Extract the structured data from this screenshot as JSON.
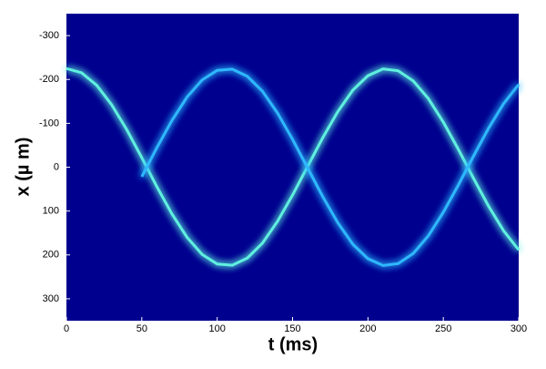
{
  "chart_data": {
    "type": "line",
    "xlabel": "t (ms)",
    "ylabel": "x (µ m)",
    "x": [
      0,
      10,
      20,
      30,
      40,
      50,
      60,
      70,
      80,
      90,
      100,
      110,
      120,
      130,
      140,
      150,
      160,
      170,
      180,
      190,
      200,
      210,
      220,
      230,
      240,
      250,
      260,
      270,
      280,
      290,
      300
    ],
    "series": [
      {
        "color": "#5ff0e0",
        "values": [
          -225,
          -215.3,
          -187,
          -142.4,
          -85.7,
          -21.6,
          44.5,
          106.7,
          159.8,
          198.9,
          220.7,
          223.6,
          207.2,
          173.3,
          123.5,
          63.5,
          -1.8,
          -67,
          -126.7,
          -175.7,
          -208.6,
          -224.1,
          -219.8,
          -196.7,
          -156.8,
          -102.8,
          -40.5,
          25.2,
          88.7,
          144.9,
          188.6
        ]
      },
      {
        "color": "#2fb8ff",
        "values": [
          null,
          null,
          null,
          null,
          null,
          21.6,
          -44.5,
          -106.7,
          -159.8,
          -198.9,
          -220.7,
          -223.6,
          -207.2,
          -173.3,
          -123.5,
          -63.5,
          1.8,
          67,
          126.7,
          175.7,
          208.6,
          224.1,
          219.8,
          196.7,
          156.8,
          102.8,
          40.5,
          -25.2,
          -88.7,
          -144.9,
          -188.6
        ]
      }
    ],
    "xlim": [
      0,
      300
    ],
    "xticks": [
      0,
      50,
      100,
      150,
      200,
      250,
      300
    ],
    "ylim": [
      350,
      -350
    ],
    "yticks": [
      -300,
      -200,
      -100,
      0,
      100,
      200,
      300
    ],
    "background": "#00008f"
  }
}
